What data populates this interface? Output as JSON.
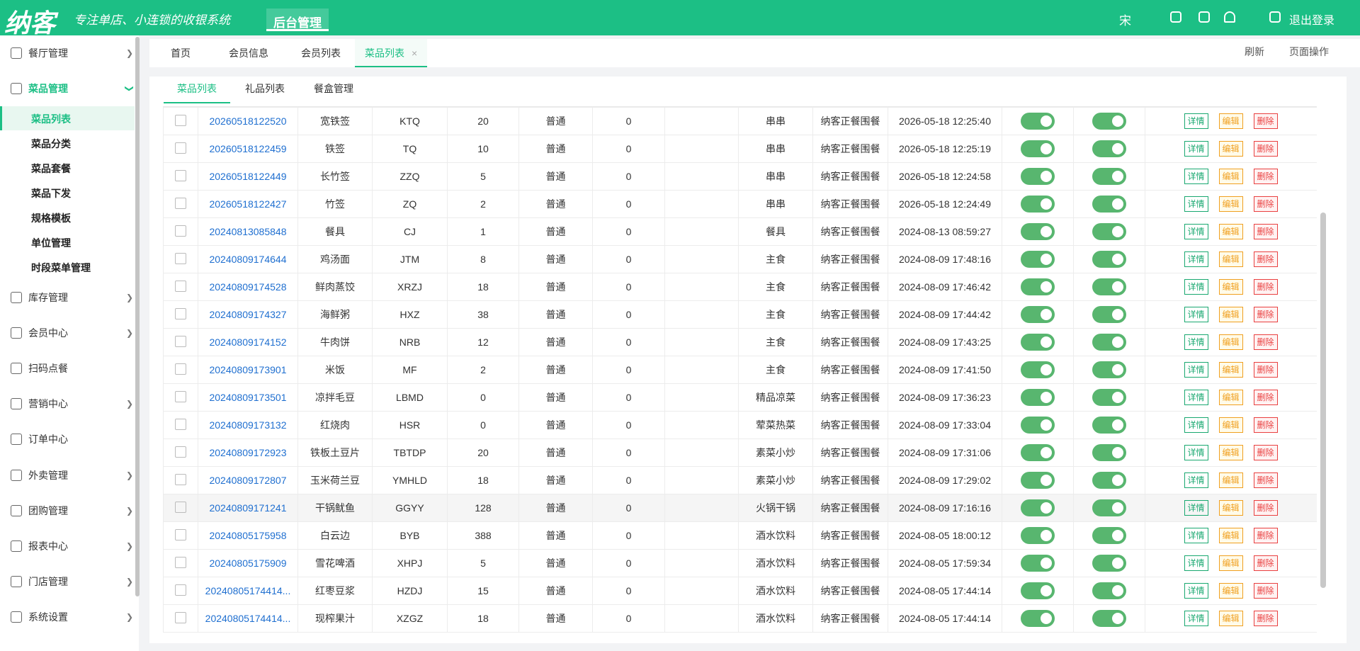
{
  "header": {
    "logo": "纳客",
    "slogan": "专注单店、小连锁的收银系统",
    "admin": "后台管理",
    "user": "宋",
    "logout": "退出登录"
  },
  "sidebar": {
    "top": [
      {
        "label": "餐厅管理",
        "y": 75
      },
      {
        "label": "菜品管理",
        "y": 125
      }
    ],
    "children": [
      "菜品列表",
      "菜品分类",
      "菜品套餐",
      "菜品下发",
      "规格模板",
      "单位管理",
      "时段菜单管理"
    ],
    "bottom": [
      "库存管理",
      "会员中心",
      "扫码点餐",
      "营销中心",
      "订单中心",
      "外卖管理",
      "团购管理",
      "报表中心",
      "门店管理",
      "系统设置"
    ]
  },
  "tabs": [
    "首页",
    "会员信息",
    "会员列表",
    "菜品列表"
  ],
  "tab_actions": [
    "刷新",
    "页面操作"
  ],
  "inner_tabs": [
    "菜品列表",
    "礼品列表",
    "餐盒管理"
  ],
  "actions": [
    "详情",
    "编辑",
    "删除"
  ],
  "table": {
    "rows": [
      [
        "20260518122520",
        "宽铁签",
        "KTQ",
        20,
        "普通",
        0,
        "串串",
        "纳客正餐围餐",
        "2026-05-18 12:25:40"
      ],
      [
        "20260518122459",
        "铁签",
        "TQ",
        10,
        "普通",
        0,
        "串串",
        "纳客正餐围餐",
        "2026-05-18 12:25:19"
      ],
      [
        "20260518122449",
        "长竹签",
        "ZZQ",
        5,
        "普通",
        0,
        "串串",
        "纳客正餐围餐",
        "2026-05-18 12:24:58"
      ],
      [
        "20260518122427",
        "竹签",
        "ZQ",
        2,
        "普通",
        0,
        "串串",
        "纳客正餐围餐",
        "2026-05-18 12:24:49"
      ],
      [
        "20240813085848",
        "餐具",
        "CJ",
        1,
        "普通",
        0,
        "餐具",
        "纳客正餐围餐",
        "2024-08-13 08:59:27"
      ],
      [
        "20240809174644",
        "鸡汤面",
        "JTM",
        8,
        "普通",
        0,
        "主食",
        "纳客正餐围餐",
        "2024-08-09 17:48:16"
      ],
      [
        "20240809174528",
        "鲜肉蒸饺",
        "XRZJ",
        18,
        "普通",
        0,
        "主食",
        "纳客正餐围餐",
        "2024-08-09 17:46:42"
      ],
      [
        "20240809174327",
        "海鲜粥",
        "HXZ",
        38,
        "普通",
        0,
        "主食",
        "纳客正餐围餐",
        "2024-08-09 17:44:42"
      ],
      [
        "20240809174152",
        "牛肉饼",
        "NRB",
        12,
        "普通",
        0,
        "主食",
        "纳客正餐围餐",
        "2024-08-09 17:43:25"
      ],
      [
        "20240809173901",
        "米饭",
        "MF",
        2,
        "普通",
        0,
        "主食",
        "纳客正餐围餐",
        "2024-08-09 17:41:50"
      ],
      [
        "20240809173501",
        "凉拌毛豆",
        "LBMD",
        0,
        "普通",
        0,
        "精品凉菜",
        "纳客正餐围餐",
        "2024-08-09 17:36:23"
      ],
      [
        "20240809173132",
        "红烧肉",
        "HSR",
        0,
        "普通",
        0,
        "荤菜热菜",
        "纳客正餐围餐",
        "2024-08-09 17:33:04"
      ],
      [
        "20240809172923",
        "铁板土豆片",
        "TBTDP",
        20,
        "普通",
        0,
        "素菜小炒",
        "纳客正餐围餐",
        "2024-08-09 17:31:06"
      ],
      [
        "20240809172807",
        "玉米荷兰豆",
        "YMHLD",
        18,
        "普通",
        0,
        "素菜小炒",
        "纳客正餐围餐",
        "2024-08-09 17:29:02"
      ],
      [
        "20240809171241",
        "干锅鱿鱼",
        "GGYY",
        128,
        "普通",
        0,
        "火锅干锅",
        "纳客正餐围餐",
        "2024-08-09 17:16:16"
      ],
      [
        "20240805175958",
        "白云边",
        "BYB",
        388,
        "普通",
        0,
        "酒水饮料",
        "纳客正餐围餐",
        "2024-08-05 18:00:12"
      ],
      [
        "20240805175909",
        "雪花啤酒",
        "XHPJ",
        5,
        "普通",
        0,
        "酒水饮料",
        "纳客正餐围餐",
        "2024-08-05 17:59:34"
      ],
      [
        "20240805174414...",
        "红枣豆浆",
        "HZDJ",
        15,
        "普通",
        0,
        "酒水饮料",
        "纳客正餐围餐",
        "2024-08-05 17:44:14"
      ],
      [
        "20240805174414...",
        "现榨果汁",
        "XZGZ",
        18,
        "普通",
        0,
        "酒水饮料",
        "纳客正餐围餐",
        "2024-08-05 17:44:14"
      ]
    ]
  }
}
